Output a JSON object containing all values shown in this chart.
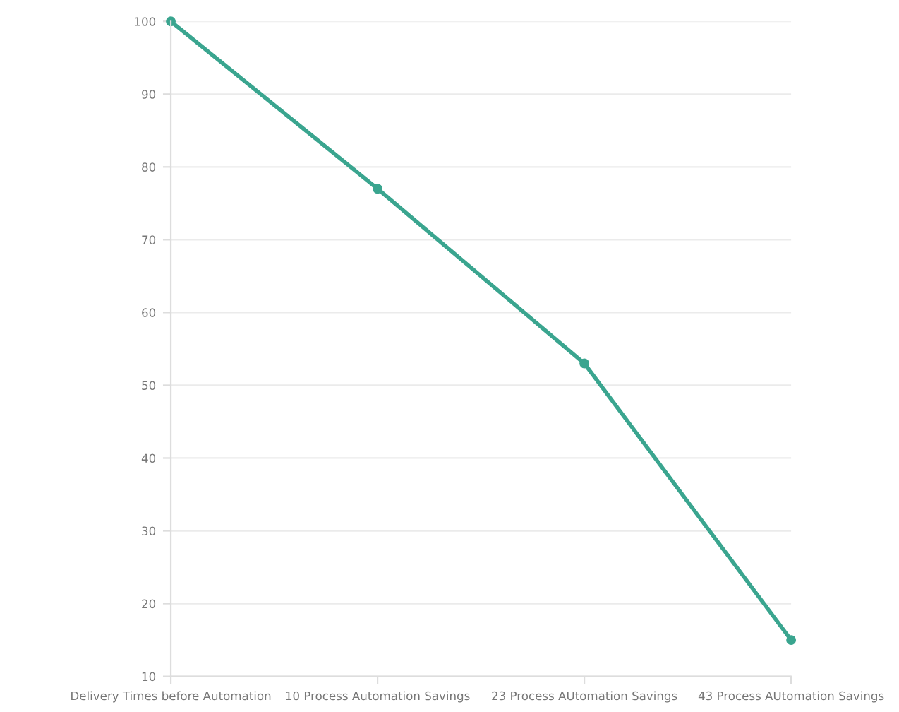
{
  "chart_data": {
    "type": "line",
    "categories": [
      "Delivery Times before Automation",
      "10 Process Automation Savings",
      "23 Process AUtomation Savings",
      "43 Process AUtomation Savings"
    ],
    "series": [
      {
        "color": "#3aa58f",
        "values": [
          100,
          77,
          53,
          15
        ]
      }
    ],
    "ylim": [
      10,
      100
    ],
    "yticks": [
      10,
      20,
      30,
      40,
      50,
      60,
      70,
      80,
      90,
      100
    ],
    "grid": "y",
    "marker": "circle",
    "line_style": "solid"
  }
}
